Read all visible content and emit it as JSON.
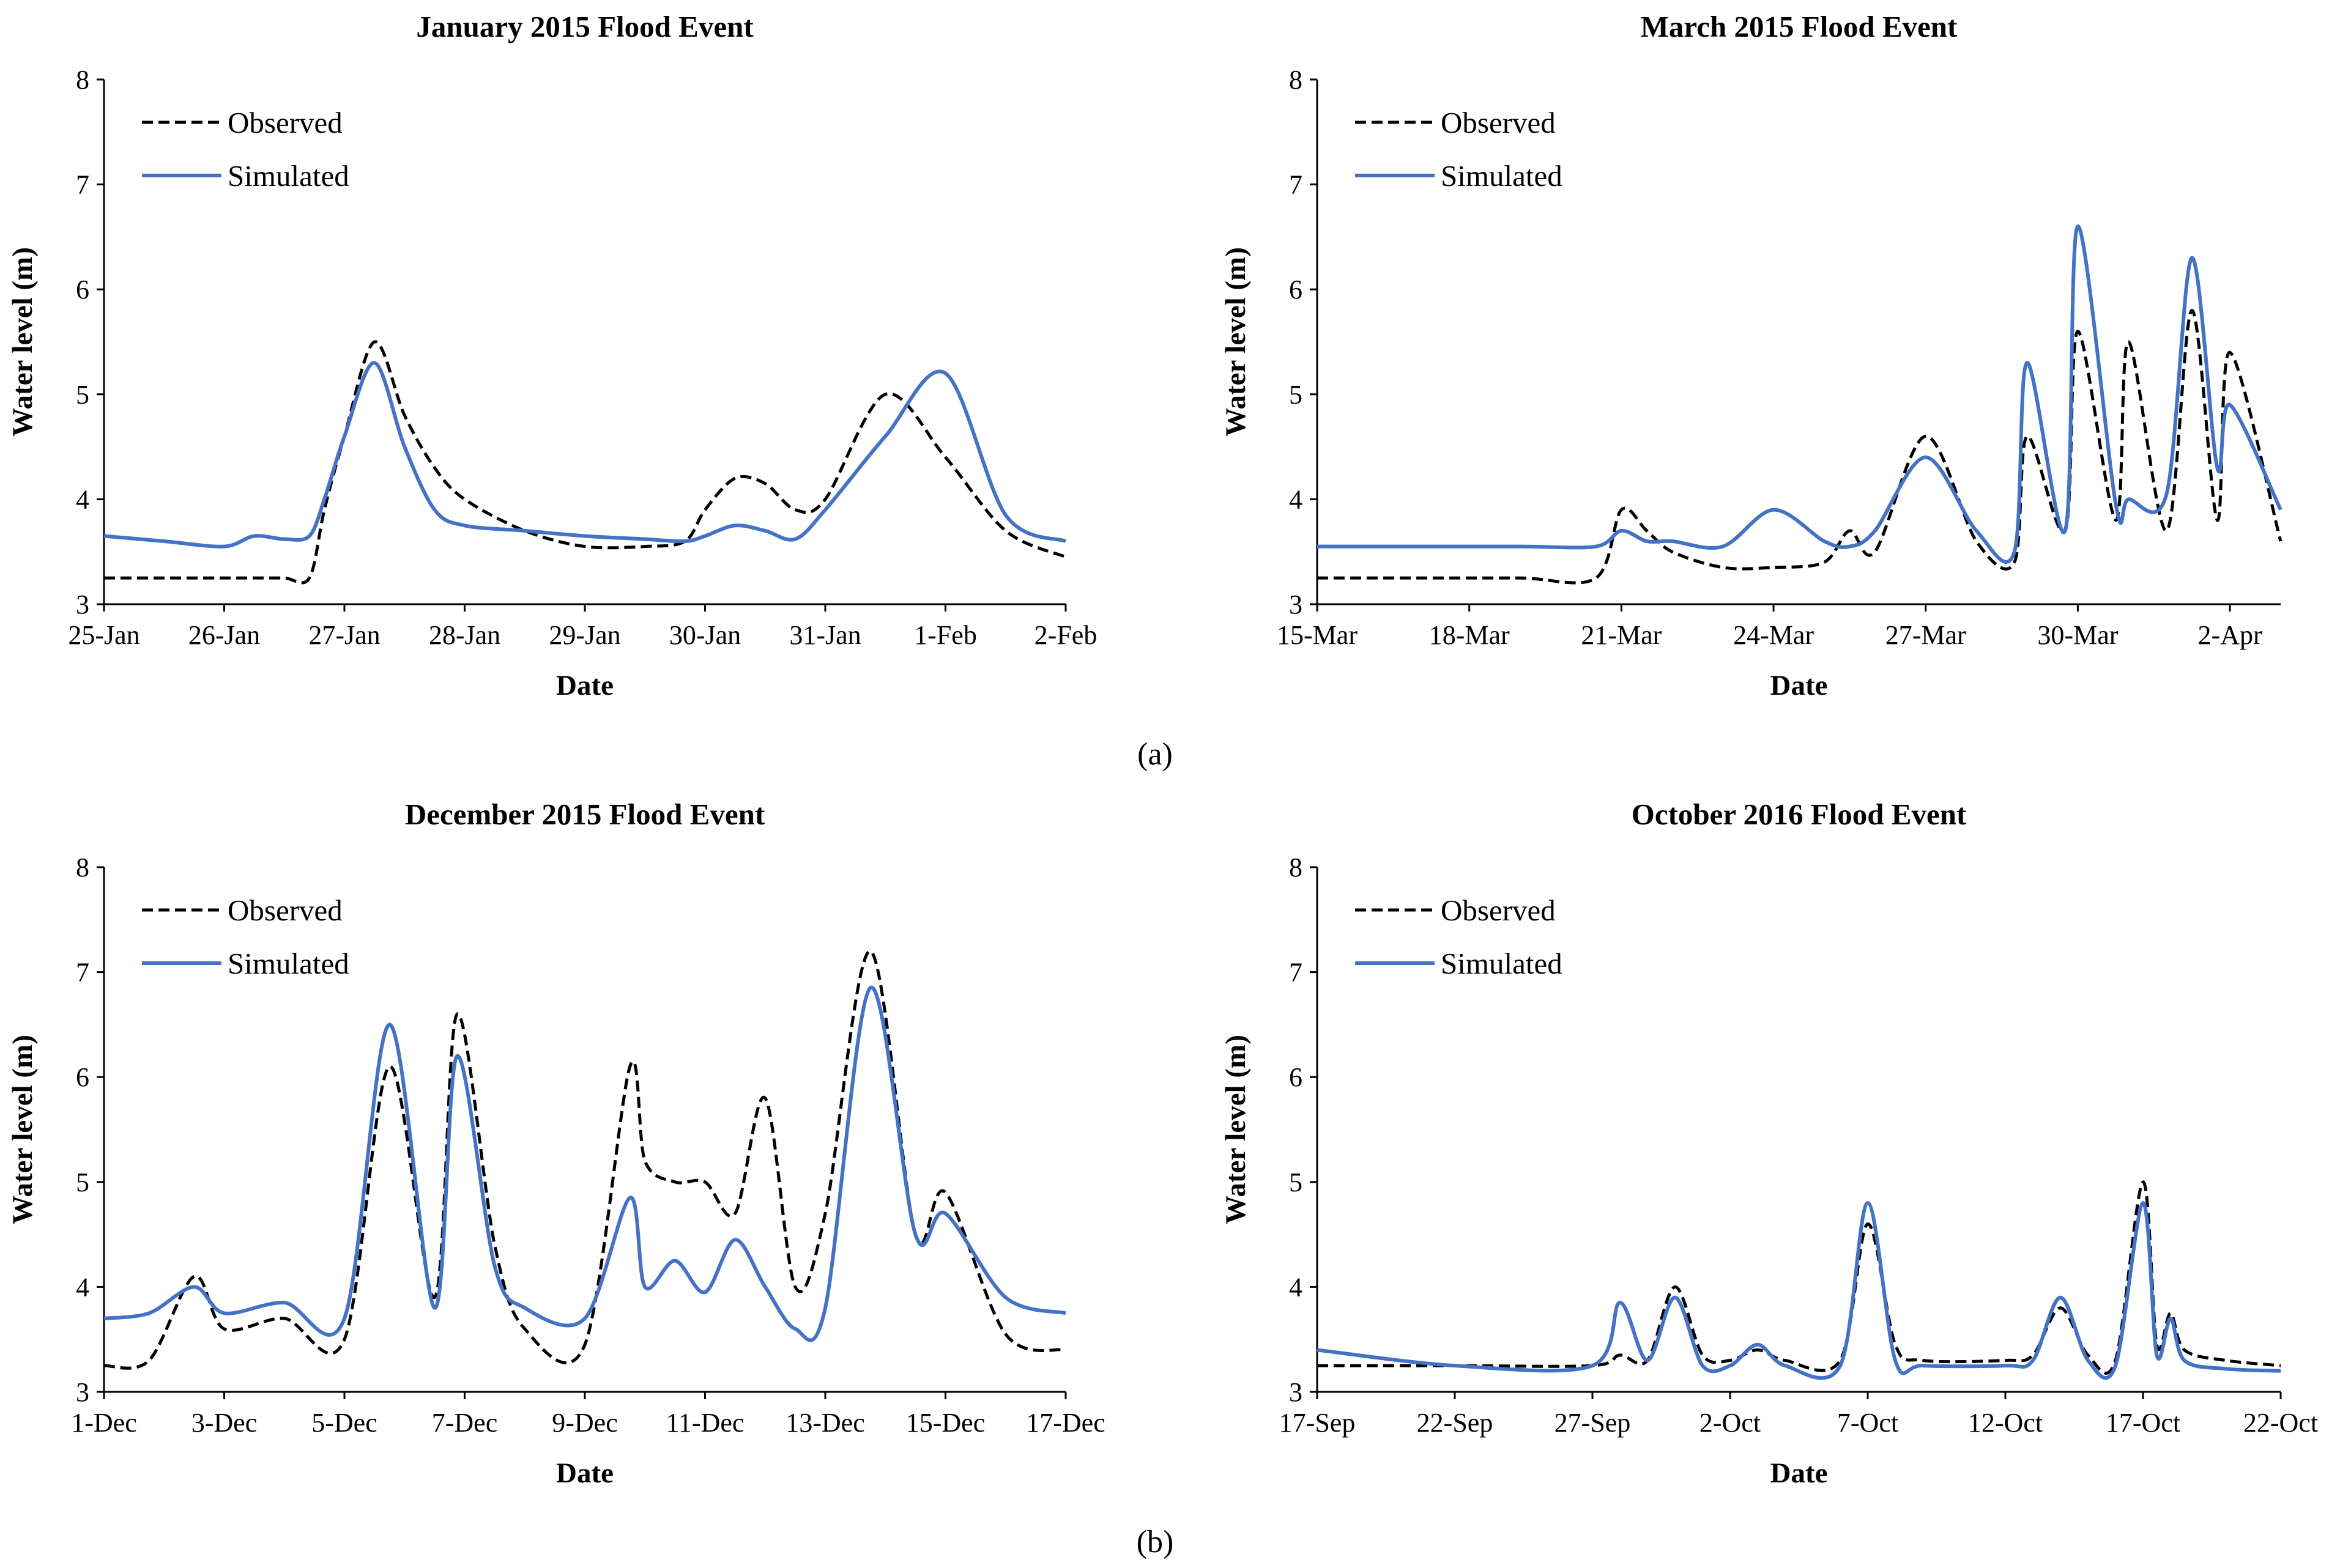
{
  "figure_labels": [
    "(a)",
    "(b)"
  ],
  "chart_data": [
    {
      "type": "line",
      "title": "January 2015 Flood Event",
      "xlabel": "Date",
      "ylabel": "Water level (m)",
      "xlim": [
        "25-Jan",
        "2-Feb"
      ],
      "ylim": [
        3,
        8
      ],
      "yticks": [
        3,
        4,
        5,
        6,
        7,
        8
      ],
      "xticks": [
        "25-Jan",
        "26-Jan",
        "27-Jan",
        "28-Jan",
        "29-Jan",
        "30-Jan",
        "31-Jan",
        "1-Feb",
        "2-Feb"
      ],
      "grid": false,
      "legend": "top-left",
      "x": [
        "25-Jan 00:00",
        "25-Jan 12:00",
        "26-Jan 00:00",
        "26-Jan 06:00",
        "26-Jan 12:00",
        "26-Jan 17:00",
        "26-Jan 20:00",
        "27-Jan 00:00",
        "27-Jan 06:00",
        "27-Jan 12:00",
        "27-Jan 18:00",
        "28-Jan 00:00",
        "28-Jan 12:00",
        "29-Jan 00:00",
        "29-Jan 12:00",
        "29-Jan 20:00",
        "30-Jan 00:00",
        "30-Jan 06:00",
        "30-Jan 12:00",
        "30-Jan 18:00",
        "31-Jan 00:00",
        "31-Jan 12:00",
        "1-Feb 00:00",
        "1-Feb 12:00",
        "2-Feb 00:00"
      ],
      "series": [
        {
          "name": "Observed",
          "style": "dashed",
          "color": "#000000",
          "values": [
            3.25,
            3.25,
            3.25,
            3.25,
            3.25,
            3.25,
            3.9,
            4.6,
            5.5,
            4.8,
            4.3,
            4.0,
            3.7,
            3.55,
            3.55,
            3.6,
            3.9,
            4.2,
            4.15,
            3.9,
            4.0,
            5.0,
            4.4,
            3.7,
            3.45
          ]
        },
        {
          "name": "Simulated",
          "style": "solid",
          "color": "#4472C4",
          "values": [
            3.65,
            3.6,
            3.55,
            3.65,
            3.62,
            3.65,
            4.0,
            4.6,
            5.3,
            4.5,
            3.9,
            3.75,
            3.7,
            3.65,
            3.62,
            3.6,
            3.65,
            3.75,
            3.7,
            3.62,
            3.9,
            4.6,
            5.2,
            3.85,
            3.6
          ]
        }
      ]
    },
    {
      "type": "line",
      "title": "March 2015 Flood Event",
      "xlabel": "Date",
      "ylabel": "Water level (m)",
      "xlim": [
        "15-Mar",
        "3-Apr"
      ],
      "ylim": [
        3,
        8
      ],
      "yticks": [
        3,
        4,
        5,
        6,
        7,
        8
      ],
      "xticks": [
        "15-Mar",
        "18-Mar",
        "21-Mar",
        "24-Mar",
        "27-Mar",
        "30-Mar",
        "2-Apr"
      ],
      "grid": false,
      "legend": "top-left",
      "x": [
        "15-Mar",
        "17-Mar",
        "19-Mar",
        "20-Mar 12:00",
        "21-Mar",
        "21-Mar 12:00",
        "22-Mar",
        "23-Mar",
        "24-Mar",
        "25-Mar",
        "25-Mar 12:00",
        "26-Mar",
        "27-Mar",
        "28-Mar",
        "28-Mar 18:00",
        "29-Mar",
        "29-Mar 18:00",
        "30-Mar",
        "30-Mar 18:00",
        "31-Mar",
        "31-Mar 18:00",
        "1-Apr 06:00",
        "1-Apr 18:00",
        "2-Apr",
        "3-Apr"
      ],
      "series": [
        {
          "name": "Observed",
          "style": "dashed",
          "color": "#000000",
          "values": [
            3.25,
            3.25,
            3.25,
            3.25,
            3.9,
            3.7,
            3.5,
            3.35,
            3.35,
            3.4,
            3.7,
            3.5,
            4.6,
            3.6,
            3.4,
            4.6,
            3.7,
            5.6,
            3.8,
            5.5,
            3.7,
            5.8,
            3.8,
            5.4,
            3.6
          ]
        },
        {
          "name": "Simulated",
          "style": "solid",
          "color": "#4472C4",
          "values": [
            3.55,
            3.55,
            3.55,
            3.55,
            3.7,
            3.6,
            3.6,
            3.55,
            3.9,
            3.6,
            3.55,
            3.7,
            4.4,
            3.7,
            3.5,
            5.3,
            3.7,
            6.6,
            3.95,
            4.0,
            4.05,
            6.3,
            4.3,
            4.9,
            3.9
          ]
        }
      ]
    },
    {
      "type": "line",
      "title": "December 2015 Flood Event",
      "xlabel": "Date",
      "ylabel": "Water level (m)",
      "xlim": [
        "1-Dec",
        "17-Dec"
      ],
      "ylim": [
        3,
        8
      ],
      "yticks": [
        3,
        4,
        5,
        6,
        7,
        8
      ],
      "xticks": [
        "1-Dec",
        "3-Dec",
        "5-Dec",
        "7-Dec",
        "9-Dec",
        "11-Dec",
        "13-Dec",
        "15-Dec",
        "17-Dec"
      ],
      "grid": false,
      "legend": "top-left",
      "x": [
        "1-Dec",
        "1-Dec 18:00",
        "2-Dec 12:00",
        "3-Dec",
        "4-Dec",
        "5-Dec",
        "5-Dec 18:00",
        "6-Dec 12:00",
        "6-Dec 21:00",
        "7-Dec 12:00",
        "8-Dec",
        "9-Dec",
        "9-Dec 18:00",
        "10-Dec",
        "10-Dec 12:00",
        "11-Dec",
        "11-Dec 12:00",
        "12-Dec",
        "12-Dec 12:00",
        "13-Dec",
        "13-Dec 18:00",
        "14-Dec 12:00",
        "15-Dec",
        "16-Dec",
        "17-Dec"
      ],
      "series": [
        {
          "name": "Observed",
          "style": "dashed",
          "color": "#000000",
          "values": [
            3.25,
            3.3,
            4.1,
            3.6,
            3.7,
            3.5,
            6.1,
            3.9,
            6.6,
            4.4,
            3.6,
            3.45,
            6.1,
            5.2,
            5.0,
            5.0,
            4.7,
            5.8,
            4.0,
            4.7,
            7.2,
            4.5,
            4.9,
            3.55,
            3.4
          ]
        },
        {
          "name": "Simulated",
          "style": "solid",
          "color": "#4472C4",
          "values": [
            3.7,
            3.75,
            4.0,
            3.75,
            3.85,
            3.7,
            6.5,
            3.8,
            6.2,
            4.2,
            3.8,
            3.7,
            4.85,
            4.0,
            4.25,
            3.95,
            4.45,
            4.0,
            3.6,
            3.8,
            6.85,
            4.5,
            4.7,
            3.9,
            3.75
          ]
        }
      ]
    },
    {
      "type": "line",
      "title": "October 2016 Flood Event",
      "xlabel": "Date",
      "ylabel": "Water level (m)",
      "xlim": [
        "17-Sep",
        "22-Oct"
      ],
      "ylim": [
        3,
        8
      ],
      "yticks": [
        3,
        4,
        5,
        6,
        7,
        8
      ],
      "xticks": [
        "17-Sep",
        "22-Sep",
        "27-Sep",
        "2-Oct",
        "7-Oct",
        "12-Oct",
        "17-Oct",
        "22-Oct"
      ],
      "grid": false,
      "legend": "top-left",
      "x": [
        "17-Sep",
        "22-Sep",
        "27-Sep",
        "28-Sep",
        "29-Sep",
        "30-Sep",
        "1-Oct",
        "2-Oct",
        "3-Oct",
        "4-Oct",
        "6-Oct",
        "7-Oct",
        "8-Oct",
        "9-Oct",
        "12-Oct",
        "13-Oct",
        "14-Oct",
        "15-Oct",
        "16-Oct",
        "17-Oct",
        "17-Oct 12:00",
        "18-Oct",
        "18-Oct 12:00",
        "20-Oct",
        "22-Oct"
      ],
      "series": [
        {
          "name": "Observed",
          "style": "dashed",
          "color": "#000000",
          "values": [
            3.25,
            3.25,
            3.25,
            3.35,
            3.3,
            4.0,
            3.35,
            3.3,
            3.4,
            3.3,
            3.3,
            4.6,
            3.45,
            3.3,
            3.3,
            3.35,
            3.8,
            3.35,
            3.3,
            5.0,
            3.45,
            3.75,
            3.4,
            3.3,
            3.25
          ]
        },
        {
          "name": "Simulated",
          "style": "solid",
          "color": "#4472C4",
          "values": [
            3.4,
            3.25,
            3.25,
            3.85,
            3.3,
            3.9,
            3.25,
            3.25,
            3.45,
            3.25,
            3.25,
            4.8,
            3.3,
            3.25,
            3.25,
            3.3,
            3.9,
            3.3,
            3.25,
            4.8,
            3.35,
            3.7,
            3.3,
            3.22,
            3.2
          ]
        }
      ]
    }
  ]
}
